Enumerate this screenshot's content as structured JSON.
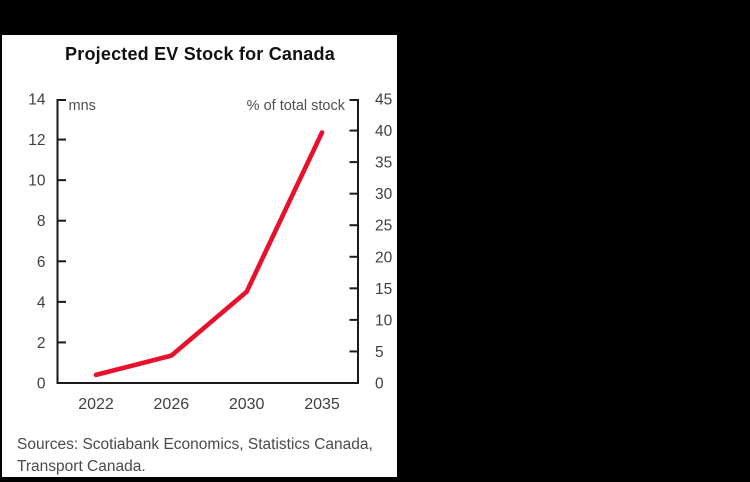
{
  "page": {
    "background": "#000000"
  },
  "panel": {
    "background": "#ffffff"
  },
  "chart_data": {
    "type": "line",
    "title": "Projected EV Stock for Canada",
    "x_labels": [
      "2022",
      "2026",
      "2030",
      "2035"
    ],
    "series": [
      {
        "name": "Projected EV stock for Canada",
        "color": "#e8112d",
        "axis_for_values": "left",
        "values_mns_lhs": [
          0.4,
          1.35,
          4.5,
          12.35
        ],
        "values_pct_rhs": [
          1.3,
          4.3,
          14.5,
          39.7
        ]
      }
    ],
    "left_axis": {
      "unit_label": "mns",
      "min": 0,
      "max": 14,
      "tick_step": 2,
      "tick_labels": [
        "0",
        "2",
        "4",
        "6",
        "8",
        "10",
        "12",
        "14"
      ]
    },
    "right_axis": {
      "unit_label": "% of total stock",
      "min": 0,
      "max": 45,
      "tick_step": 5,
      "tick_labels": [
        "0",
        "5",
        "10",
        "15",
        "20",
        "25",
        "30",
        "35",
        "40",
        "45"
      ]
    },
    "grid": false,
    "legend_position": "none",
    "frame": "left-right-bottom open-top with corner brackets",
    "axis_color": "#1a1a1a",
    "tick_label_color": "#3f3f3f"
  },
  "footer": {
    "source_line_1": "Sources: Scotiabank Economics, Statistics Canada,",
    "source_line_2": "Transport Canada."
  }
}
